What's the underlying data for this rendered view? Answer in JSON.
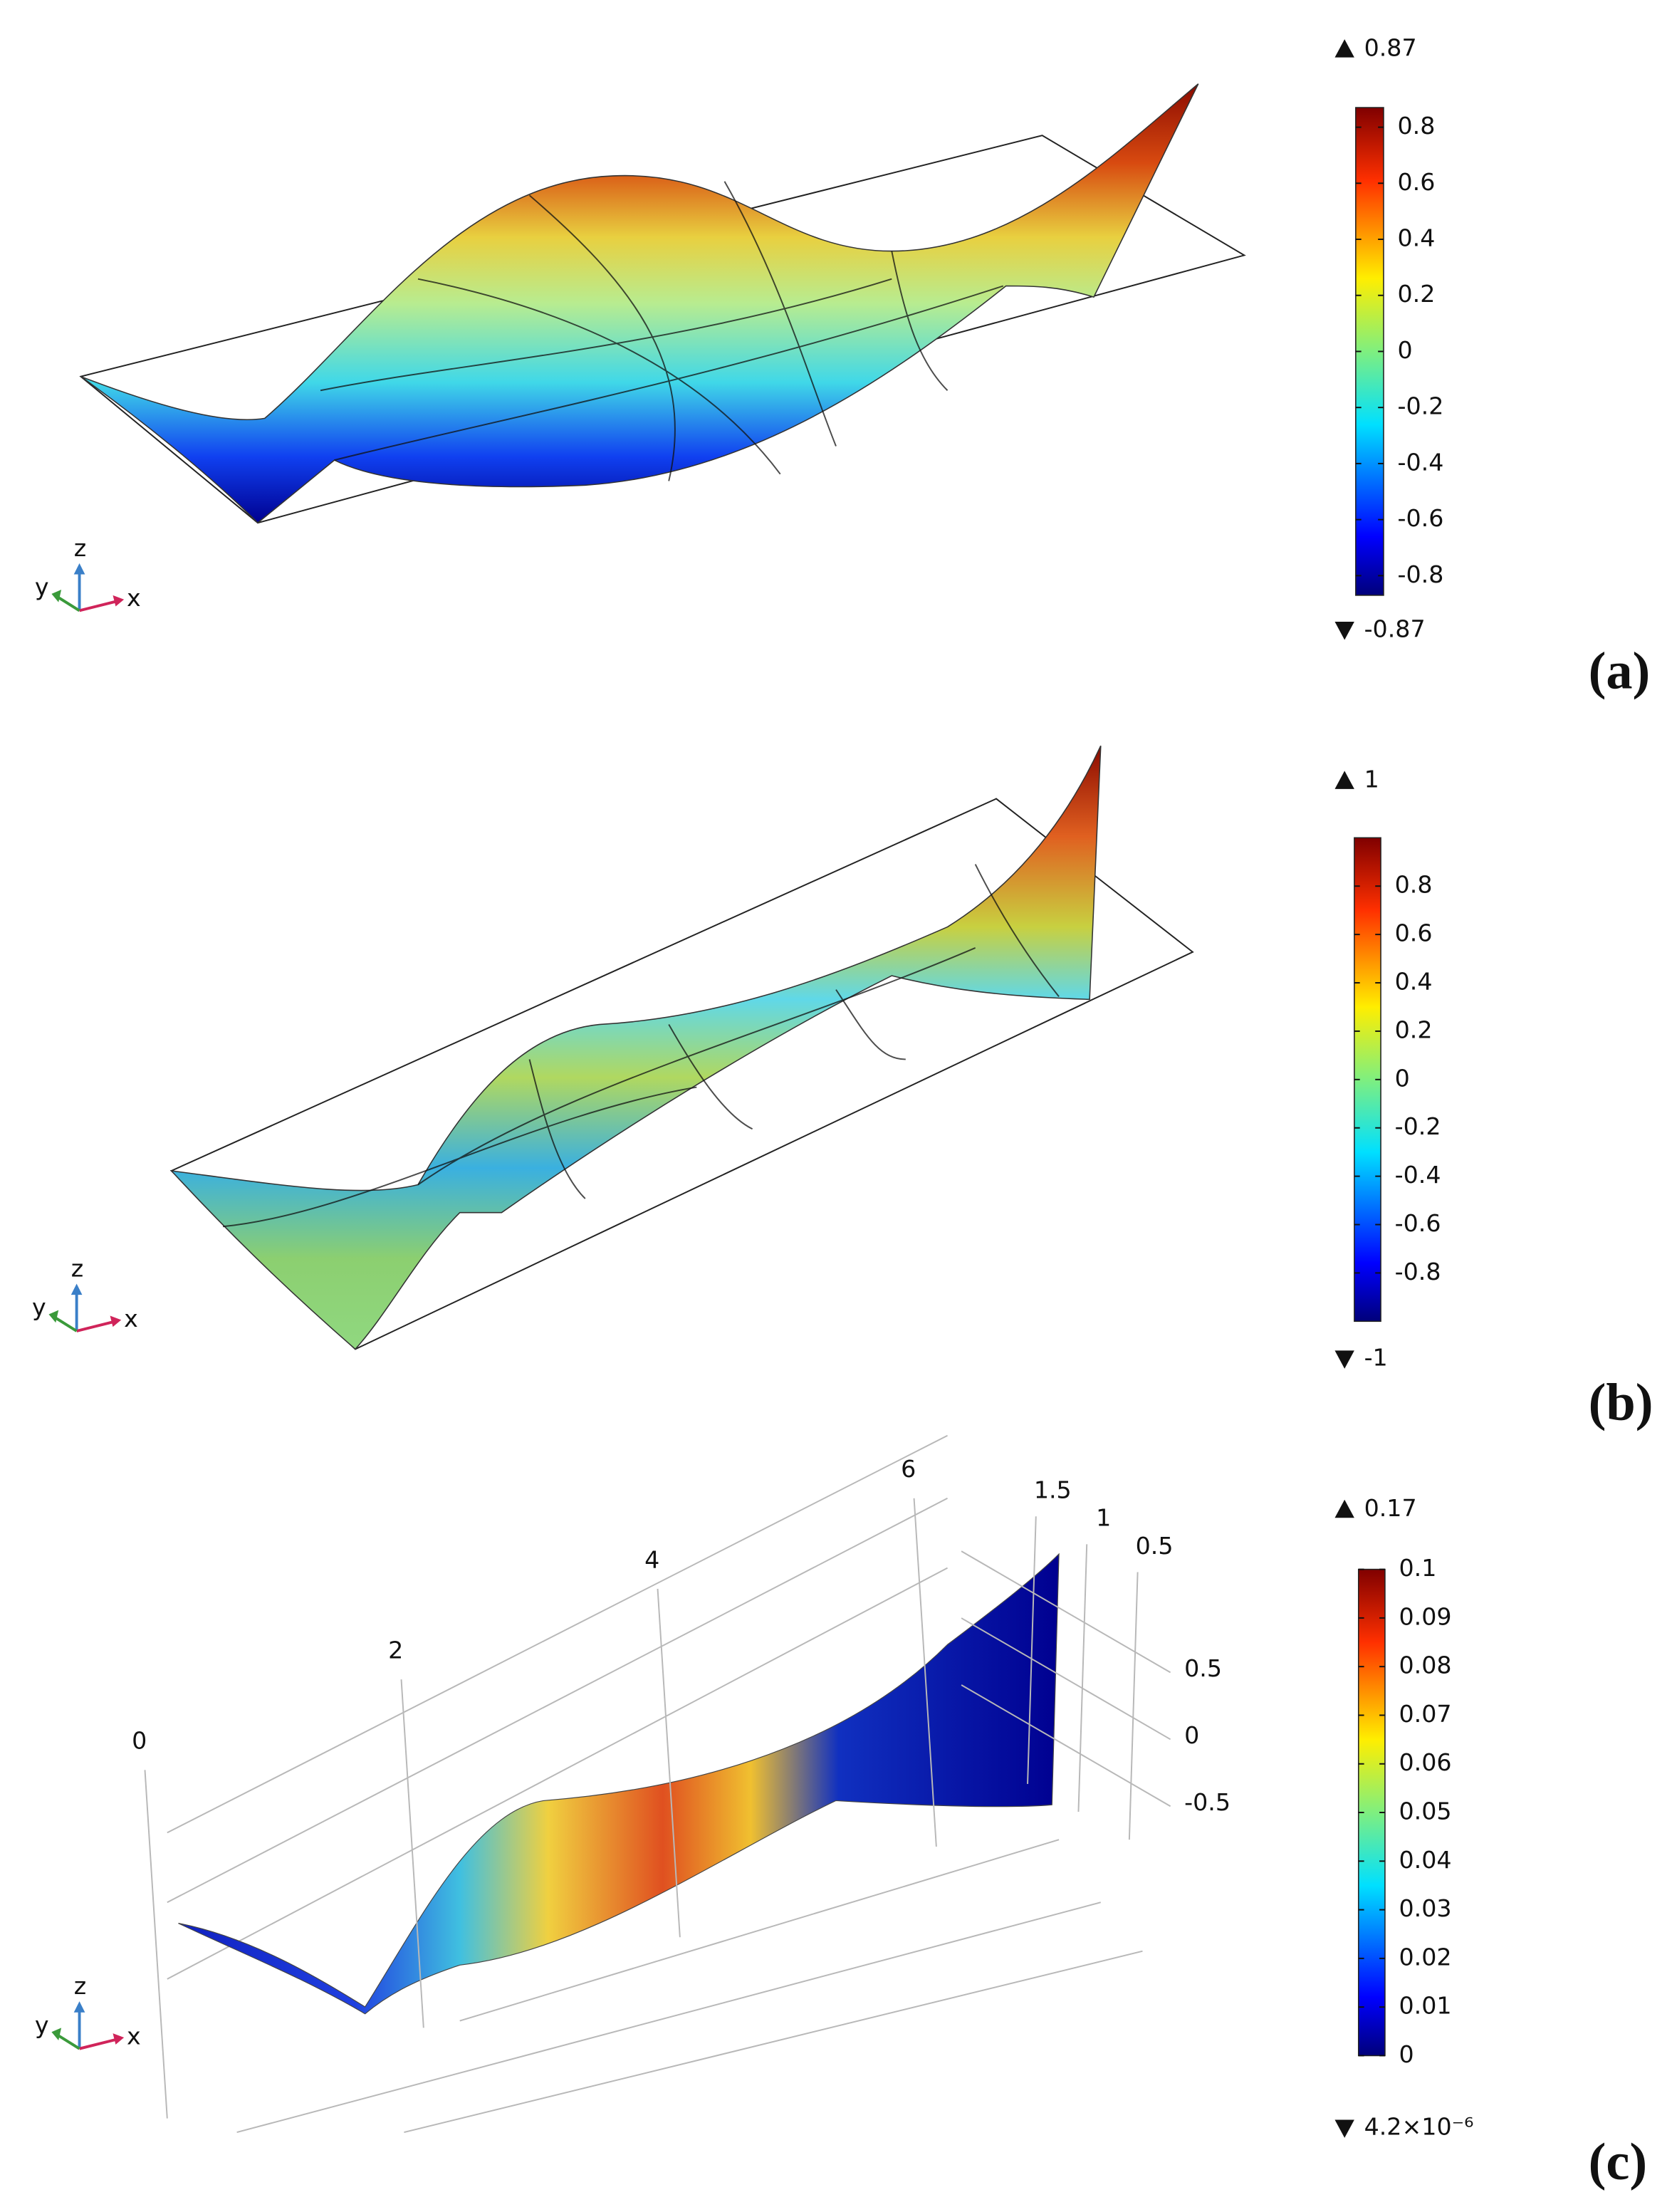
{
  "panels": [
    {
      "label": "(a)",
      "colorbar": {
        "max": 0.87,
        "min": -0.87,
        "lim": [
          -0.87,
          0.87
        ],
        "ticks": [
          -0.8,
          -0.6,
          -0.4,
          -0.2,
          0,
          0.2,
          0.4,
          0.6,
          0.8
        ]
      },
      "triad": {
        "x": "x",
        "y": "y",
        "z": "z"
      }
    },
    {
      "label": "(b)",
      "colorbar": {
        "max": 1,
        "min": -1,
        "lim": [
          -1,
          1
        ],
        "ticks": [
          -0.8,
          -0.6,
          -0.4,
          -0.2,
          0,
          0.2,
          0.4,
          0.6,
          0.8
        ]
      },
      "triad": {
        "x": "x",
        "y": "y",
        "z": "z"
      }
    },
    {
      "label": "(c)",
      "colorbar": {
        "max": 0.17,
        "min": {
          "value": 4.2e-06,
          "label": "4.2×10⁻⁶"
        },
        "lim": [
          0,
          0.1
        ],
        "ticks": [
          0,
          0.01,
          0.02,
          0.03,
          0.04,
          0.05,
          0.06,
          0.07,
          0.08,
          0.09,
          0.1
        ]
      },
      "triad": {
        "x": "x",
        "y": "y",
        "z": "z"
      },
      "axes": {
        "xticks": [
          0,
          2,
          4,
          6
        ],
        "yticks": [
          0.5,
          1,
          1.5
        ],
        "zticks": [
          -0.5,
          0,
          0.5
        ]
      }
    }
  ]
}
